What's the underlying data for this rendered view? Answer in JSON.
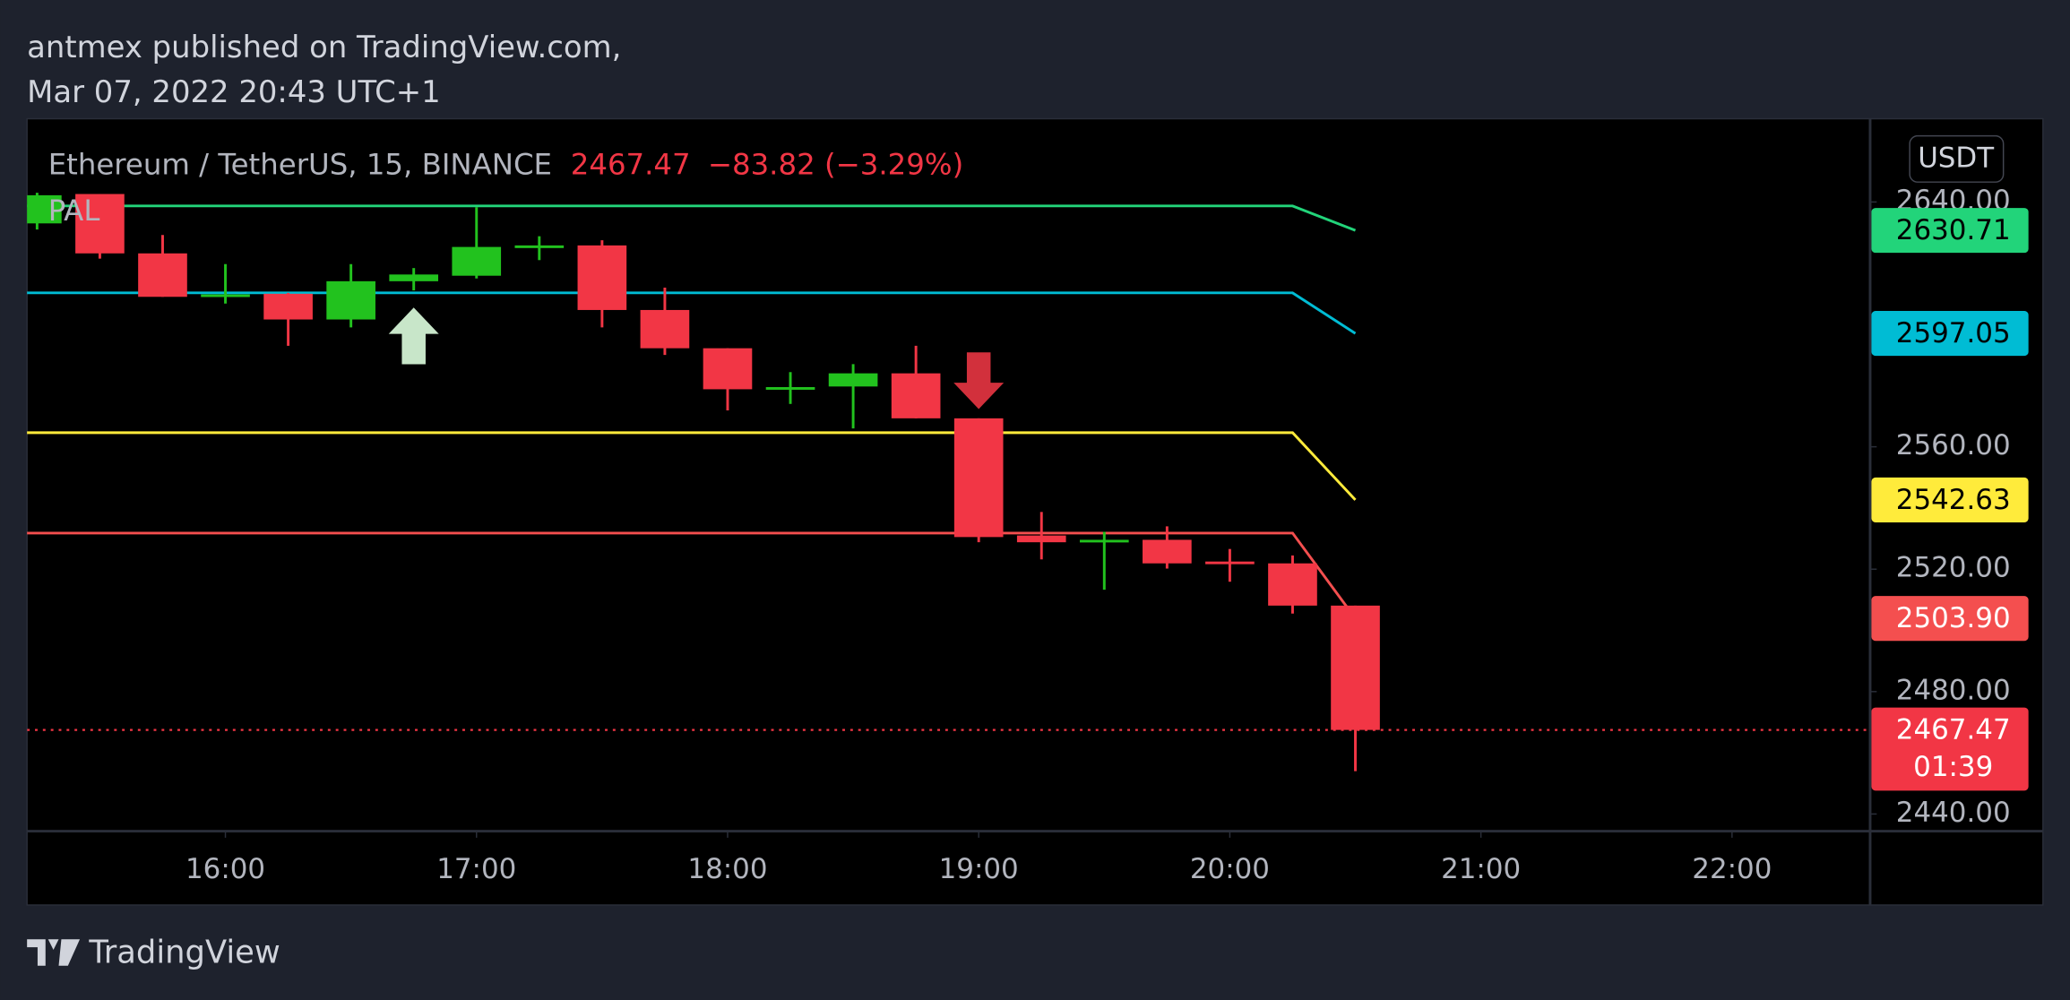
{
  "chart_data": {
    "type": "candlestick",
    "publisher": "antmex published on TradingView.com,",
    "published_at": "Mar 07, 2022 20:43 UTC+1",
    "symbol": "Ethereum / TetherUS, 15, BINANCE",
    "last": 2467.47,
    "change": "−83.82 (−3.29%)",
    "indicator": "PAL",
    "currency": "USDT",
    "countdown": "01:39",
    "brand": "TradingView",
    "up_color": "#22c21e",
    "down_color": "#f23645",
    "x": [
      15.25,
      15.5,
      15.75,
      16,
      16.25,
      16.5,
      16.75,
      17,
      17.25,
      17.5,
      17.75,
      18,
      18.25,
      18.5,
      18.75,
      19,
      19.25,
      19.5,
      19.75,
      20,
      20.25,
      20.5
    ],
    "open": [
      2633,
      2642.6,
      2623.2,
      2609.4,
      2610,
      2601.6,
      2614.1,
      2615.9,
      2625.3,
      2625.8,
      2604.7,
      2592.2,
      2579,
      2579.7,
      2584,
      2569.3,
      2531,
      2529,
      2529.6,
      2522.5,
      2521.9,
      2508.1
    ],
    "high": [
      2643,
      2642.6,
      2629.2,
      2619.7,
      2610.3,
      2619.7,
      2618.4,
      2638.3,
      2628.8,
      2627.5,
      2612,
      2592.2,
      2584.4,
      2587,
      2593,
      2569.3,
      2538.7,
      2532.2,
      2534,
      2526.6,
      2524.5,
      2508.1
    ],
    "low": [
      2631,
      2621.5,
      2609,
      2606.8,
      2593,
      2599,
      2611.1,
      2615,
      2621,
      2599,
      2590,
      2571.9,
      2574,
      2566,
      2569.3,
      2528.8,
      2523.2,
      2513.3,
      2520.2,
      2515.9,
      2505.5,
      2454
    ],
    "close": [
      2642.2,
      2623.2,
      2609,
      2609.8,
      2601.6,
      2614.1,
      2616.3,
      2625.3,
      2625.8,
      2604.7,
      2592.2,
      2578.8,
      2579.5,
      2584,
      2569.3,
      2530.5,
      2528.8,
      2529.6,
      2521.9,
      2522,
      2508.1,
      2467.47
    ],
    "lines": [
      {
        "color": "#22d47a",
        "text_color": "#000000",
        "x": [
          15,
          20.25,
          20.5
        ],
        "values": [
          2638.7,
          2638.7,
          2630.71
        ]
      },
      {
        "color": "#00bcd4",
        "text_color": "#000000",
        "x": [
          15,
          20.25,
          20.5
        ],
        "values": [
          2610.3,
          2610.3,
          2597.05
        ]
      },
      {
        "color": "#ffeb3b",
        "text_color": "#000000",
        "x": [
          15,
          20.25,
          20.5
        ],
        "values": [
          2564.6,
          2564.6,
          2542.63
        ]
      },
      {
        "color": "#f44f4f",
        "text_color": "#ffffff",
        "x": [
          15,
          20.25,
          20.5
        ],
        "values": [
          2531.8,
          2531.8,
          2503.9
        ],
        "value_labels": [
          null,
          null,
          "2503.90"
        ]
      }
    ],
    "up_arrows": [
      16.75
    ],
    "down_arrows": [
      19
    ],
    "xlim": [
      15.21,
      22.55
    ],
    "ylim": [
      2434.4,
      2667.2
    ],
    "xticks": [
      {
        "value": 16,
        "label": "16:00"
      },
      {
        "value": 17,
        "label": "17:00"
      },
      {
        "value": 18,
        "label": "18:00"
      },
      {
        "value": 19,
        "label": "19:00"
      },
      {
        "value": 20,
        "label": "20:00"
      },
      {
        "value": 21,
        "label": "21:00"
      },
      {
        "value": 22,
        "label": "22:00"
      }
    ],
    "yticks": [
      {
        "value": 2640,
        "label": "2640.00"
      },
      {
        "value": 2560,
        "label": "2560.00"
      },
      {
        "value": 2520,
        "label": "2520.00"
      },
      {
        "value": 2480,
        "label": "2480.00"
      },
      {
        "value": 2440,
        "label": "2440.00"
      }
    ]
  }
}
